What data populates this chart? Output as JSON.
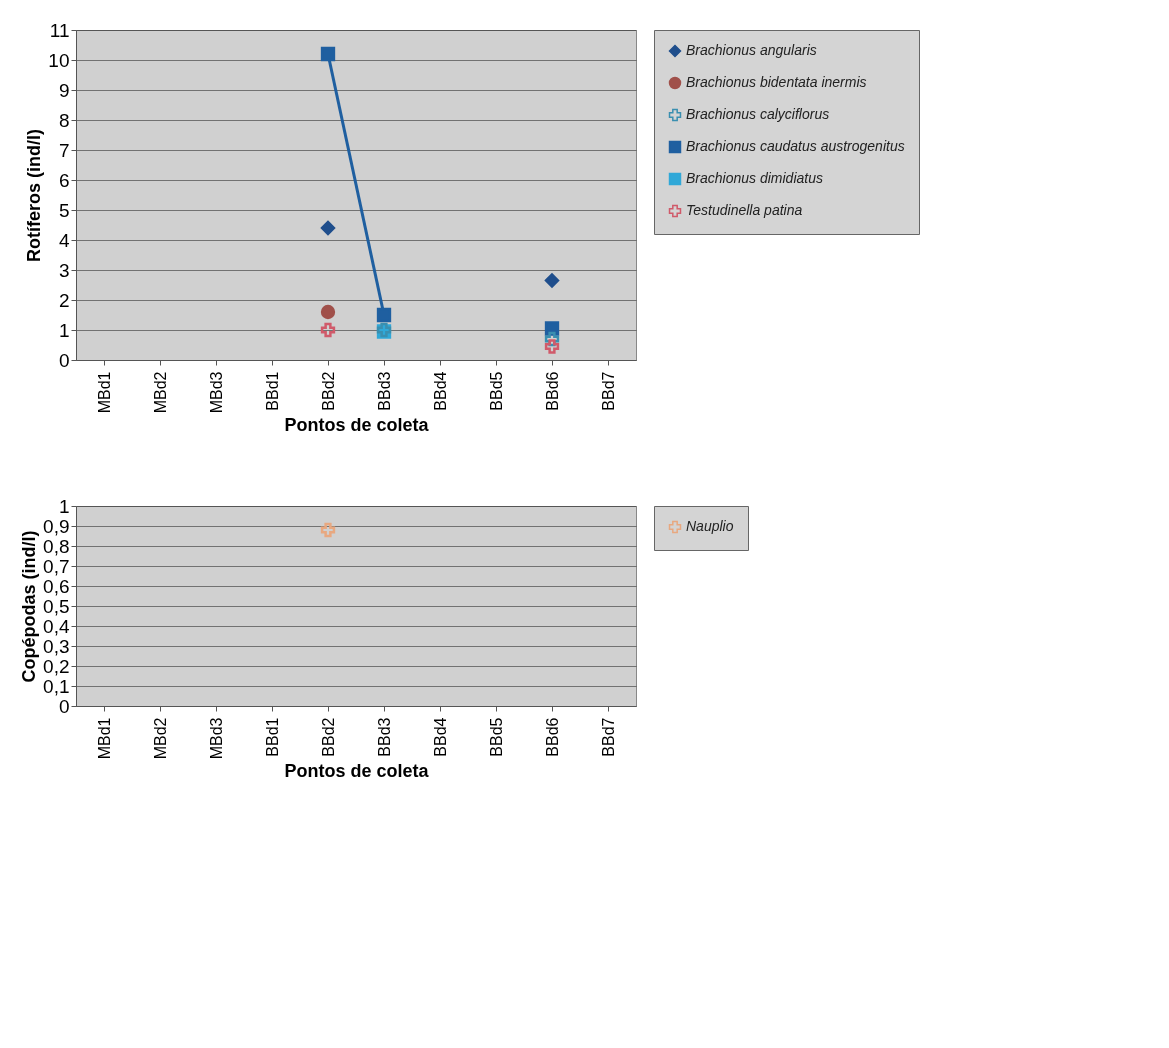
{
  "chart_data": [
    {
      "type": "line",
      "xlabel": "Pontos de coleta",
      "ylabel": "Rotíferos (ind/l)",
      "categories": [
        "MBd1",
        "MBd2",
        "MBd3",
        "BBd1",
        "BBd2",
        "BBd3",
        "BBd4",
        "BBd5",
        "BBd6",
        "BBd7"
      ],
      "ylim": [
        0,
        11
      ],
      "yticks": [
        0,
        1,
        2,
        3,
        4,
        5,
        6,
        7,
        8,
        9,
        10,
        11
      ],
      "grid": "y",
      "legend": "right",
      "series": [
        {
          "name": "Brachionus angularis",
          "type": "scatter",
          "color": "#1f4e8c",
          "marker": "diamond",
          "values": [
            null,
            null,
            null,
            null,
            4.4,
            null,
            null,
            null,
            2.65,
            null
          ]
        },
        {
          "name": "Brachionus bidentata inermis",
          "type": "scatter",
          "color": "#a0504a",
          "marker": "circle",
          "values": [
            null,
            null,
            null,
            null,
            1.6,
            null,
            null,
            null,
            null,
            null
          ]
        },
        {
          "name": "Brachionus calyciflorus",
          "type": "scatter",
          "color": "#3a8fb0",
          "marker": "cross",
          "values": [
            null,
            null,
            null,
            null,
            null,
            1.0,
            null,
            null,
            0.7,
            null
          ]
        },
        {
          "name": "Brachionus caudatus austrogenitus",
          "color": "#1f5fa0",
          "marker": "square",
          "values": [
            null,
            null,
            null,
            null,
            10.2,
            1.5,
            null,
            null,
            1.05,
            null
          ]
        },
        {
          "name": "Brachionus dimidiatus",
          "type": "scatter",
          "color": "#30a8d8",
          "marker": "square",
          "values": [
            null,
            null,
            null,
            null,
            null,
            0.95,
            null,
            null,
            null,
            null
          ]
        },
        {
          "name": "Testudinella patina",
          "type": "scatter",
          "color": "#d05a6a",
          "marker": "cross",
          "values": [
            null,
            null,
            null,
            null,
            1.0,
            null,
            null,
            null,
            0.45,
            null
          ]
        }
      ]
    },
    {
      "type": "line",
      "xlabel": "Pontos de coleta",
      "ylabel": "Copépodas (ind/l)",
      "categories": [
        "MBd1",
        "MBd2",
        "MBd3",
        "BBd1",
        "BBd2",
        "BBd3",
        "BBd4",
        "BBd5",
        "BBd6",
        "BBd7"
      ],
      "ylim": [
        0,
        1
      ],
      "yticks": [
        0,
        {
          "value": 0.1,
          "label": "0,1"
        },
        {
          "value": 0.2,
          "label": "0,2"
        },
        {
          "value": 0.3,
          "label": "0,3"
        },
        {
          "value": 0.4,
          "label": "0,4"
        },
        {
          "value": 0.5,
          "label": "0,5"
        },
        {
          "value": 0.6,
          "label": "0,6"
        },
        {
          "value": 0.7,
          "label": "0,7"
        },
        {
          "value": 0.8,
          "label": "0,8"
        },
        {
          "value": 0.9,
          "label": "0,9"
        },
        1
      ],
      "grid": "y",
      "legend": "right",
      "series": [
        {
          "name": "Nauplio",
          "type": "scatter",
          "color": "#e8a880",
          "marker": "cross",
          "values": [
            null,
            null,
            null,
            null,
            0.88,
            null,
            null,
            null,
            null,
            null
          ]
        }
      ]
    }
  ]
}
